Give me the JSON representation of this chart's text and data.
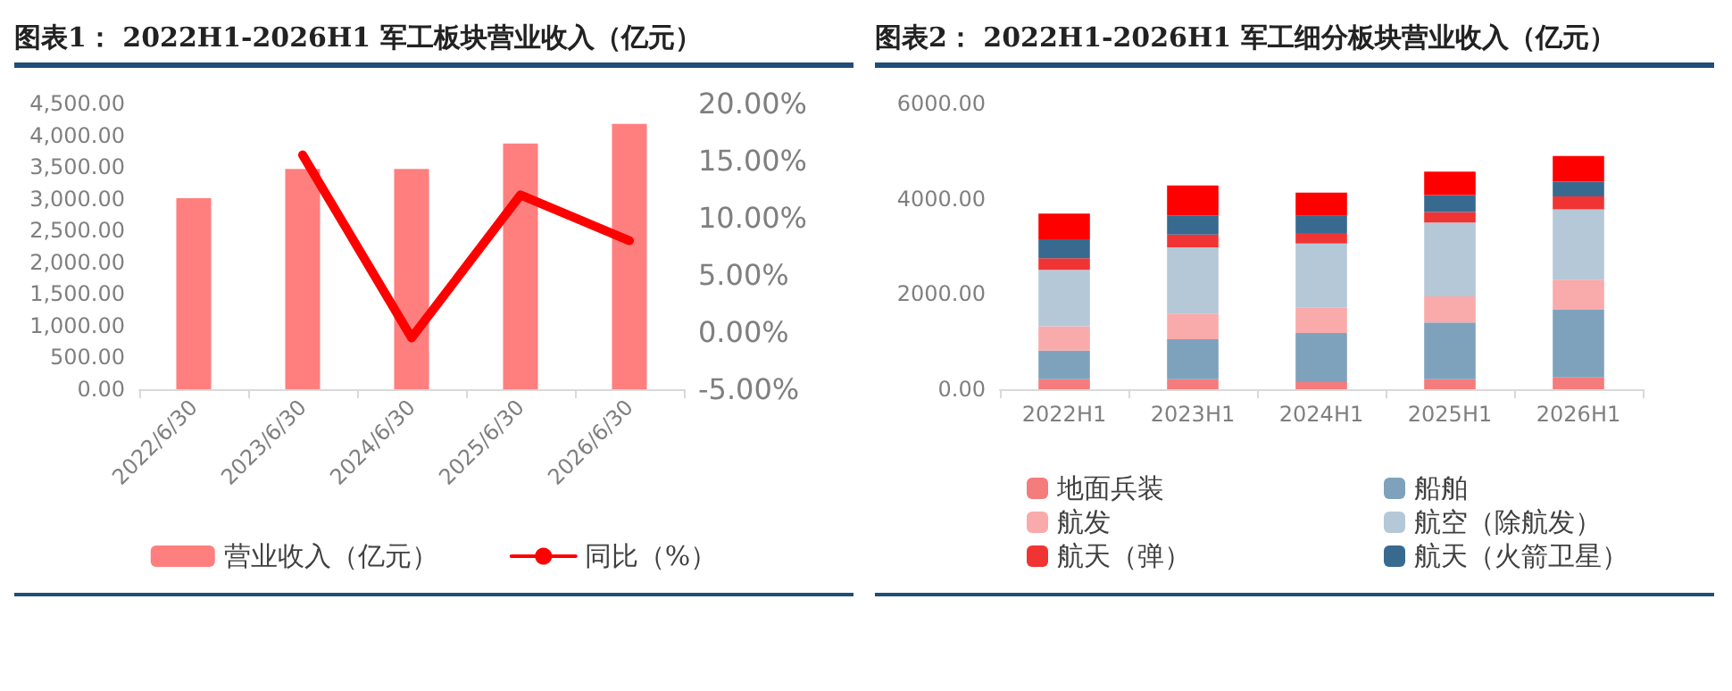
{
  "chart_data": [
    {
      "type": "bar",
      "title": "图表1：  2022H1-2026H1 军工板块营业收入（亿元）",
      "categories": [
        "2022/6/30",
        "2023/6/30",
        "2024/6/30",
        "2025/6/30",
        "2026/6/30"
      ],
      "series": [
        {
          "name": "营业收入（亿元）",
          "color": "#ff7f7f",
          "values": [
            3010,
            3470,
            3470,
            3870,
            4180
          ]
        },
        {
          "name": "同比（%）",
          "type": "line",
          "axis": "y2",
          "color": "#ff0000",
          "values": [
            null,
            15.5,
            -0.5,
            12,
            8
          ]
        }
      ],
      "ylim": [
        0,
        4500
      ],
      "yticks": [
        {
          "value": 0,
          "label": "0.00"
        },
        {
          "value": 500,
          "label": "500.00"
        },
        {
          "value": 1000,
          "label": "1,000.00"
        },
        {
          "value": 1500,
          "label": "1,500.00"
        },
        {
          "value": 2000,
          "label": "2,000.00"
        },
        {
          "value": 2500,
          "label": "2,500.00"
        },
        {
          "value": 3000,
          "label": "3,000.00"
        },
        {
          "value": 3500,
          "label": "3,500.00"
        },
        {
          "value": 4000,
          "label": "4,000.00"
        },
        {
          "value": 4500,
          "label": "4,500.00"
        }
      ],
      "y2lim": [
        -5,
        20
      ],
      "y2ticks": [
        {
          "value": -5,
          "label": "-5.00%"
        },
        {
          "value": 0,
          "label": "0.00%"
        },
        {
          "value": 5,
          "label": "5.00%"
        },
        {
          "value": 10,
          "label": "10.00%"
        },
        {
          "value": 15,
          "label": "15.00%"
        },
        {
          "value": 20,
          "label": "20.00%"
        }
      ],
      "legend": "bottom",
      "marker": "none"
    },
    {
      "type": "bar",
      "title": "图表2：  2022H1-2026H1 军工细分板块营业收入（亿元）",
      "categories": [
        "2022H1",
        "2023H1",
        "2024H1",
        "2025H1",
        "2026H1"
      ],
      "stacked": true,
      "series": [
        {
          "name": "地面兵装",
          "color": "#f47c7c",
          "values": [
            210,
            210,
            150,
            210,
            250
          ]
        },
        {
          "name": "船舶",
          "color": "#7fa2bc",
          "values": [
            600,
            840,
            1030,
            1190,
            1420
          ]
        },
        {
          "name": "航发",
          "color": "#f9aaab",
          "values": [
            510,
            540,
            540,
            550,
            630
          ]
        },
        {
          "name": "航空（除航发）",
          "color": "#b4c8d7",
          "values": [
            1190,
            1390,
            1340,
            1550,
            1480
          ]
        },
        {
          "name": "航天（弹）",
          "color": "#f03434",
          "values": [
            240,
            270,
            220,
            220,
            270
          ]
        },
        {
          "name": "航天（火箭卫星）",
          "color": "#386a90",
          "values": [
            400,
            400,
            360,
            360,
            310
          ]
        },
        {
          "color": "#ff0000",
          "values": [
            540,
            630,
            490,
            490,
            540
          ]
        }
      ],
      "ylim": [
        0,
        6000
      ],
      "yticks": [
        {
          "value": 0,
          "label": "0.00"
        },
        {
          "value": 2000,
          "label": "2000.00"
        },
        {
          "value": 4000,
          "label": "4000.00"
        },
        {
          "value": 6000,
          "label": "6000.00"
        }
      ],
      "legend": "bottom"
    }
  ]
}
